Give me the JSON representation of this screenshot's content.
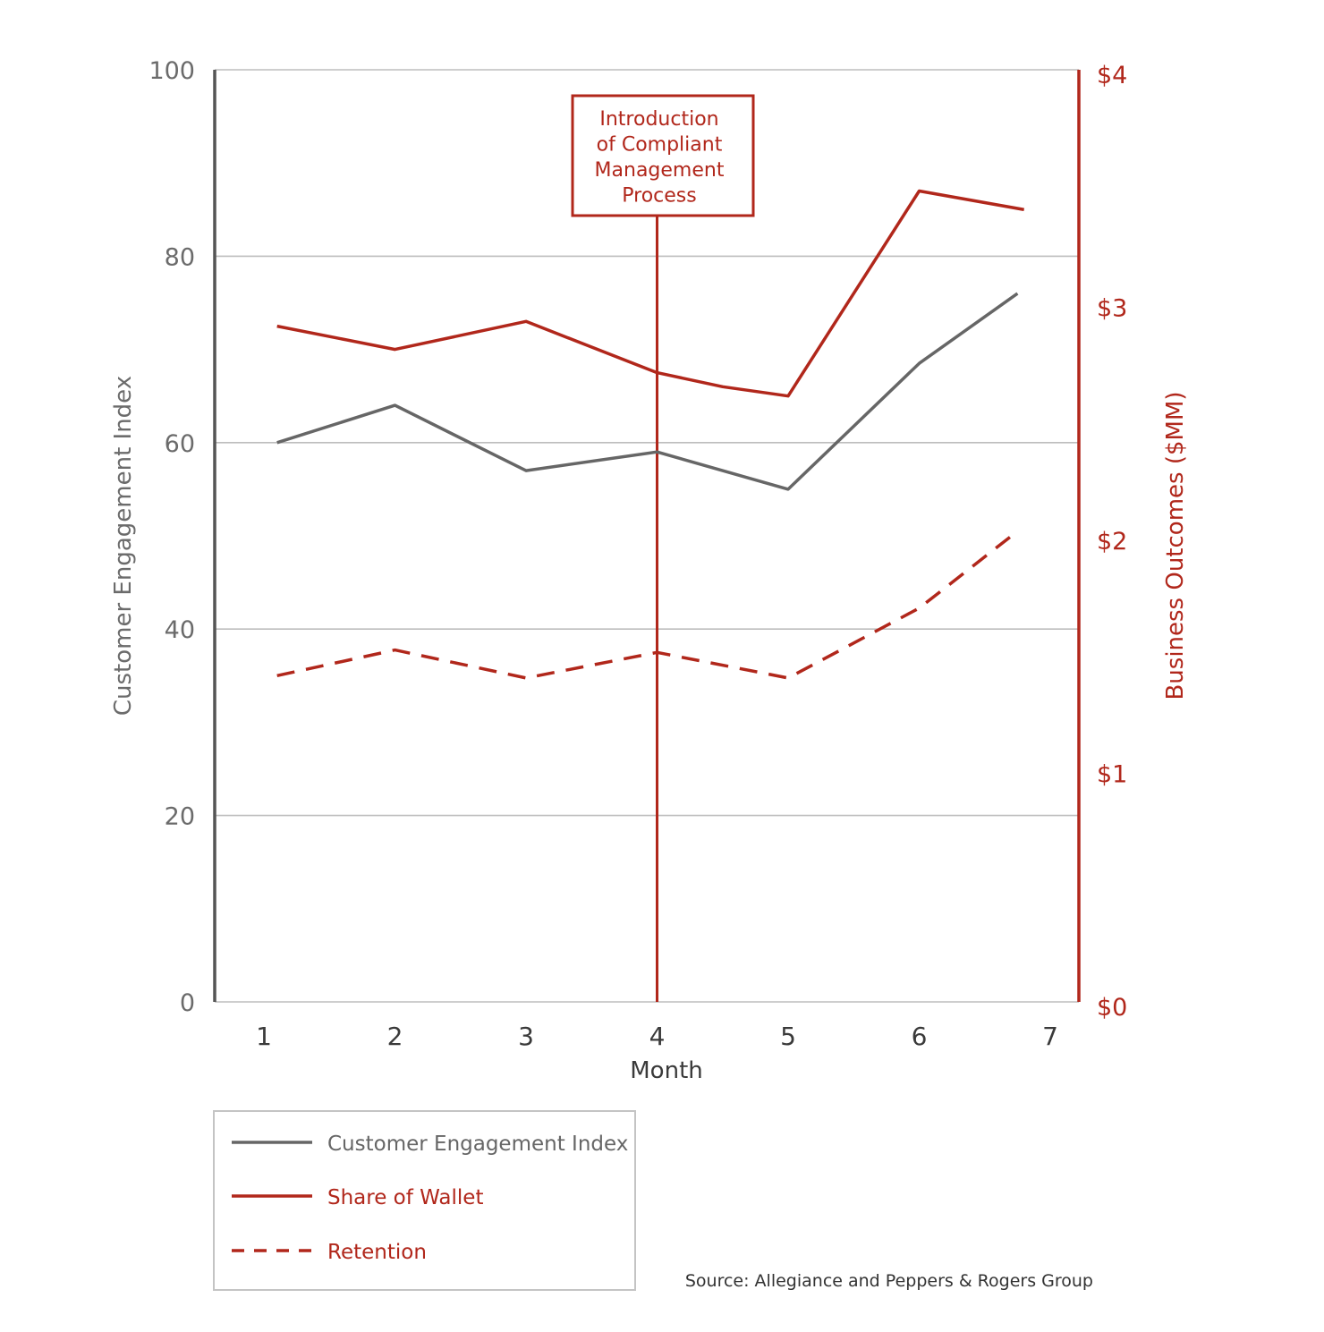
{
  "colors": {
    "gray": "#666666",
    "red": "#b1271b",
    "grid": "#bdbdbd",
    "axis_dark": "#555555"
  },
  "chart_data": {
    "type": "line",
    "x_label": "Month",
    "y_label_left": "Customer Engagement Index",
    "y_label_right": "Business Outcomes ($MM)",
    "x": [
      1,
      2,
      3,
      4,
      5,
      6,
      7
    ],
    "x_ticks": [
      "1",
      "2",
      "3",
      "4",
      "5",
      "6",
      "7"
    ],
    "ylim_left": [
      0,
      100
    ],
    "y_ticks_left": [
      "0",
      "20",
      "40",
      "60",
      "80",
      "100"
    ],
    "ylim_right": [
      0,
      4
    ],
    "y_ticks_right": [
      "$0",
      "$1",
      "$2",
      "$3",
      "$4"
    ],
    "series": [
      {
        "name": "Customer Engagement Index",
        "axis": "left",
        "style": "solid",
        "color": "#666666",
        "x": [
          1.1,
          2,
          3,
          4,
          5,
          6,
          6.75
        ],
        "values": [
          60,
          64,
          57,
          59,
          55,
          68.5,
          76
        ]
      },
      {
        "name": "Share of Wallet",
        "axis": "right",
        "style": "solid",
        "color": "#b1271b",
        "x": [
          1.1,
          2,
          3,
          4,
          4.5,
          5,
          6,
          6.8
        ],
        "values": [
          2.9,
          2.8,
          2.92,
          2.7,
          2.64,
          2.6,
          3.48,
          3.4
        ]
      },
      {
        "name": "Retention",
        "axis": "right",
        "style": "dashed",
        "color": "#b1271b",
        "x": [
          1.1,
          2,
          3,
          4,
          5,
          6,
          6.75
        ],
        "values": [
          1.4,
          1.51,
          1.39,
          1.5,
          1.39,
          1.69,
          2.02
        ]
      }
    ],
    "annotation": {
      "x": 4,
      "lines": [
        "Introduction",
        "of Compliant",
        "Management",
        "Process"
      ]
    },
    "legend": [
      "Customer Engagement Index",
      "Share of Wallet",
      "Retention"
    ],
    "legend_position": "bottom-left",
    "grid": true
  },
  "source": "Source: Allegiance and Peppers & Rogers Group"
}
